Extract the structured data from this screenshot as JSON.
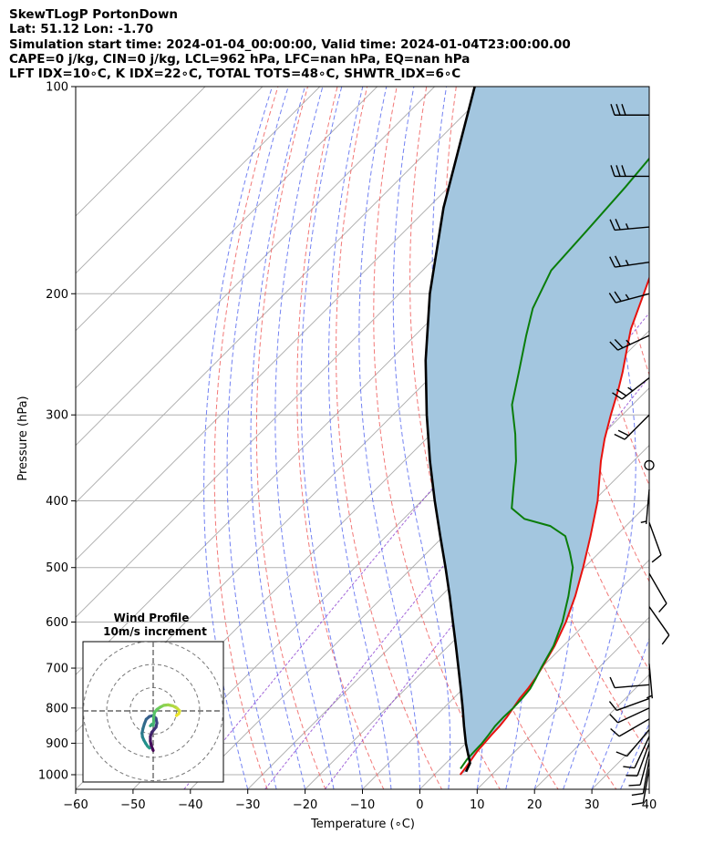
{
  "header": {
    "line1": "SkewTLogP PortonDown",
    "line2": "Lat: 51.12   Lon: -1.70",
    "line3": "Simulation start time: 2024-01-04_00:00:00, Valid time: 2024-01-04T23:00:00.00",
    "line4": "CAPE=0 j/kg, CIN=0 j/kg, LCL=962 hPa, LFC=nan hPa, EQ=nan hPa",
    "line5": "LFT IDX=10∘C, K IDX=22∘C, TOTAL TOTS=48∘C, SHWTR_IDX=6∘C"
  },
  "inset": {
    "title_line1": "Wind Profile",
    "title_line2": "10m/s increment"
  },
  "colors": {
    "temperature": "#e8120e",
    "dewpoint": "#0a7d0a",
    "parcel": "#000000",
    "shading": "#a3c6df",
    "dry_adiabat": "#f0605f",
    "moist_adiabat": "#5a6cf0",
    "mixing_ratio": "#8a3fd0",
    "isotherm": "#aaaaaa"
  },
  "chart_data": {
    "type": "line",
    "xlabel": "Temperature (∘C)",
    "ylabel": "Pressure (hPa)",
    "xlim": [
      -60,
      40
    ],
    "ylim": [
      1050,
      100
    ],
    "yscale": "log",
    "x_ticks": [
      "−60",
      "−50",
      "−40",
      "−30",
      "−20",
      "−10",
      "0",
      "10",
      "20",
      "30",
      "40"
    ],
    "y_ticks": [
      1000,
      900,
      800,
      700,
      600,
      500,
      400,
      300,
      200,
      100
    ],
    "grid": true,
    "series": [
      {
        "key": "temperature",
        "points": [
          [
            1000,
            4.5
          ],
          [
            975,
            4.2
          ],
          [
            950,
            3.8
          ],
          [
            925,
            3.4
          ],
          [
            900,
            3.2
          ],
          [
            875,
            3.0
          ],
          [
            850,
            2.9
          ],
          [
            825,
            2.6
          ],
          [
            800,
            2.1
          ],
          [
            775,
            1.6
          ],
          [
            750,
            1.3
          ],
          [
            725,
            0.8
          ],
          [
            700,
            0.1
          ],
          [
            650,
            -1.5
          ],
          [
            600,
            -3.7
          ],
          [
            550,
            -6.6
          ],
          [
            500,
            -10.2
          ],
          [
            450,
            -14.4
          ],
          [
            400,
            -19.3
          ],
          [
            375,
            -22.4
          ],
          [
            350,
            -25.7
          ],
          [
            325,
            -28.9
          ],
          [
            300,
            -32.0
          ],
          [
            275,
            -35.2
          ],
          [
            260,
            -37.4
          ],
          [
            240,
            -40.8
          ],
          [
            225,
            -43.5
          ],
          [
            200,
            -47.4
          ],
          [
            185,
            -50.0
          ],
          [
            170,
            -52.0
          ],
          [
            150,
            -55.1
          ],
          [
            125,
            -59.4
          ],
          [
            100,
            -64.0
          ]
        ]
      },
      {
        "key": "dewpoint",
        "points": [
          [
            980,
            3.5
          ],
          [
            950,
            3.0
          ],
          [
            925,
            2.9
          ],
          [
            900,
            2.8
          ],
          [
            875,
            2.5
          ],
          [
            850,
            2.1
          ],
          [
            825,
            2.0
          ],
          [
            800,
            2.1
          ],
          [
            775,
            2.0
          ],
          [
            750,
            1.7
          ],
          [
            725,
            0.9
          ],
          [
            700,
            0.0
          ],
          [
            650,
            -1.7
          ],
          [
            600,
            -4.3
          ],
          [
            550,
            -7.8
          ],
          [
            500,
            -12.0
          ],
          [
            475,
            -15.2
          ],
          [
            450,
            -18.8
          ],
          [
            435,
            -23.2
          ],
          [
            425,
            -28.9
          ],
          [
            410,
            -33.0
          ],
          [
            385,
            -36.0
          ],
          [
            350,
            -40.5
          ],
          [
            320,
            -45.3
          ],
          [
            290,
            -51.0
          ],
          [
            260,
            -55.5
          ],
          [
            230,
            -60.6
          ],
          [
            210,
            -64.2
          ],
          [
            185,
            -67.6
          ],
          [
            160,
            -68.4
          ],
          [
            140,
            -69.2
          ],
          [
            120,
            -70.5
          ],
          [
            100,
            -72.0
          ]
        ]
      },
      {
        "key": "parcel",
        "points": [
          [
            990,
            5.0
          ],
          [
            962,
            4.2
          ],
          [
            925,
            1.7
          ],
          [
            900,
            0.0
          ],
          [
            850,
            -3.3
          ],
          [
            800,
            -6.7
          ],
          [
            750,
            -10.4
          ],
          [
            700,
            -14.4
          ],
          [
            650,
            -18.7
          ],
          [
            600,
            -23.4
          ],
          [
            550,
            -28.5
          ],
          [
            500,
            -34.2
          ],
          [
            450,
            -40.6
          ],
          [
            400,
            -47.7
          ],
          [
            350,
            -55.5
          ],
          [
            300,
            -64.1
          ],
          [
            250,
            -73.8
          ],
          [
            200,
            -84.7
          ],
          [
            150,
            -97.3
          ],
          [
            100,
            -113.0
          ]
        ]
      }
    ]
  },
  "wind_profile": [
    [
      0.0,
      -8.5
    ],
    [
      -0.4,
      -7.5
    ],
    [
      -0.6,
      -6.5
    ],
    [
      -0.6,
      -5.5
    ],
    [
      -0.3,
      -4.6
    ],
    [
      0.2,
      -4.0
    ],
    [
      0.6,
      -3.5
    ],
    [
      0.8,
      -2.6
    ],
    [
      0.6,
      -1.6
    ],
    [
      0.0,
      -1.0
    ],
    [
      -0.8,
      -1.2
    ],
    [
      -1.5,
      -1.8
    ],
    [
      -1.9,
      -2.8
    ],
    [
      -2.2,
      -3.8
    ],
    [
      -2.4,
      -4.8
    ],
    [
      -2.3,
      -5.6
    ],
    [
      -2.0,
      -6.3
    ],
    [
      -1.6,
      -7.0
    ],
    [
      -1.2,
      -7.6
    ],
    [
      -0.8,
      -8.0
    ],
    [
      -0.6,
      -3.2
    ],
    [
      -0.3,
      -2.9
    ],
    [
      0.0,
      -3.1
    ],
    [
      0.1,
      -2.4
    ],
    [
      0.1,
      -1.3
    ],
    [
      0.3,
      -0.3
    ],
    [
      0.8,
      0.3
    ],
    [
      1.5,
      0.8
    ],
    [
      2.3,
      1.2
    ],
    [
      3.2,
      1.3
    ],
    [
      4.2,
      1.1
    ],
    [
      5.1,
      0.6
    ],
    [
      5.7,
      0.0
    ],
    [
      5.5,
      -0.6
    ],
    [
      5.0,
      -1.0
    ]
  ],
  "wind_barbs": [
    {
      "p": 110,
      "speed": 32,
      "dir": 270
    },
    {
      "p": 135,
      "speed": 30,
      "dir": 270
    },
    {
      "p": 160,
      "speed": 27,
      "dir": 265
    },
    {
      "p": 180,
      "speed": 25,
      "dir": 262
    },
    {
      "p": 200,
      "speed": 25,
      "dir": 255
    },
    {
      "p": 230,
      "speed": 25,
      "dir": 245
    },
    {
      "p": 265,
      "speed": 25,
      "dir": 232
    },
    {
      "p": 300,
      "speed": 20,
      "dir": 225
    },
    {
      "p": 355,
      "speed": 0,
      "dir": 0
    },
    {
      "p": 385,
      "speed": 5,
      "dir": 185
    },
    {
      "p": 430,
      "speed": 10,
      "dir": 160
    },
    {
      "p": 510,
      "speed": 10,
      "dir": 150
    },
    {
      "p": 570,
      "speed": 10,
      "dir": 145
    },
    {
      "p": 690,
      "speed": 5,
      "dir": 175
    },
    {
      "p": 740,
      "speed": 10,
      "dir": 265
    },
    {
      "p": 775,
      "speed": 10,
      "dir": 250
    },
    {
      "p": 800,
      "speed": 10,
      "dir": 245
    },
    {
      "p": 830,
      "speed": 10,
      "dir": 240
    },
    {
      "p": 860,
      "speed": 10,
      "dir": 220
    },
    {
      "p": 880,
      "speed": 10,
      "dir": 205
    },
    {
      "p": 900,
      "speed": 10,
      "dir": 200
    },
    {
      "p": 925,
      "speed": 10,
      "dir": 195
    },
    {
      "p": 950,
      "speed": 10,
      "dir": 190
    },
    {
      "p": 980,
      "speed": 10,
      "dir": 190
    }
  ]
}
